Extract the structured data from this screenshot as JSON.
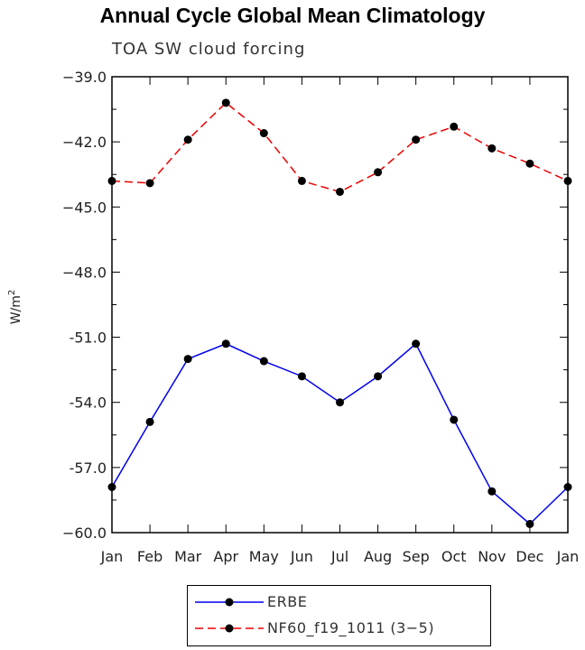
{
  "chart_data": {
    "type": "line",
    "title": "Annual Cycle Global Mean Climatology",
    "subtitle": "TOA SW cloud forcing",
    "ylabel": "W/m",
    "ylabel_sup": "2",
    "categories": [
      "Jan",
      "Feb",
      "Mar",
      "Apr",
      "May",
      "Jun",
      "Jul",
      "Aug",
      "Sep",
      "Oct",
      "Nov",
      "Dec",
      "Jan"
    ],
    "ylim": [
      -60.0,
      -39.0
    ],
    "yticks": [
      -39.0,
      -42.0,
      -45.0,
      -48.0,
      -51.0,
      -54.0,
      -57.0,
      -60.0
    ],
    "ytick_labels": [
      "−39.0",
      "−42.0",
      "−45.0",
      "−48.0",
      "-51.0",
      "-54.0",
      "-57.0",
      "−60.0"
    ],
    "series": [
      {
        "name": "ERBE",
        "color": "#0000ee",
        "style": "solid",
        "values": [
          -57.9,
          -54.9,
          -52.0,
          -51.3,
          -52.1,
          -52.8,
          -54.0,
          -52.8,
          -51.3,
          -54.8,
          -58.1,
          -59.6,
          -57.9
        ]
      },
      {
        "name": "NF60_f19_1011 (3−5)",
        "color": "#ee0000",
        "style": "dashed",
        "values": [
          -43.8,
          -43.9,
          -41.9,
          -40.2,
          -41.6,
          -43.8,
          -44.3,
          -43.4,
          -41.9,
          -41.3,
          -42.3,
          -43.0,
          -43.8
        ]
      }
    ],
    "legend_position": "bottom"
  }
}
